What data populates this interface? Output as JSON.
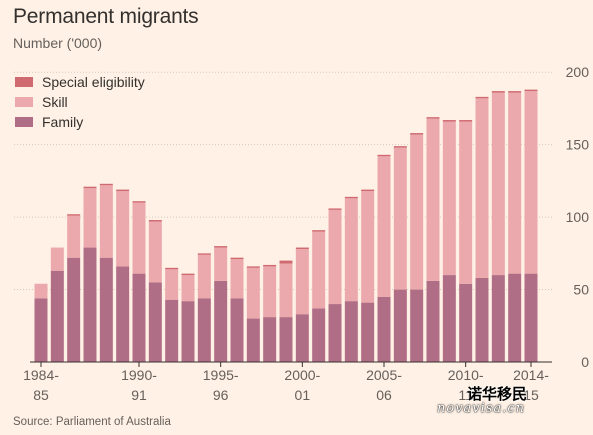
{
  "header": {
    "title": "Permanent migrants",
    "subtitle": "Number ('000)"
  },
  "legend": [
    {
      "label": "Special eligibility",
      "color": "#cf6a71"
    },
    {
      "label": "Skill",
      "color": "#eba9ad"
    },
    {
      "label": "Family",
      "color": "#b06e86"
    }
  ],
  "footer": {
    "source": "Source: Parliament of Australia"
  },
  "watermark": {
    "cn": "诺华移民",
    "en": "novavisa.cn"
  },
  "chart_data": {
    "type": "bar",
    "stacked": true,
    "categories": [
      "1984-85",
      "1985-86",
      "1986-87",
      "1987-88",
      "1988-89",
      "1989-90",
      "1990-91",
      "1991-92",
      "1992-93",
      "1993-94",
      "1994-95",
      "1995-96",
      "1996-97",
      "1997-98",
      "1998-99",
      "1999-00",
      "2000-01",
      "2001-02",
      "2002-03",
      "2003-04",
      "2004-05",
      "2005-06",
      "2006-07",
      "2007-08",
      "2008-09",
      "2009-10",
      "2010-11",
      "2011-12",
      "2012-13",
      "2013-14",
      "2014-15"
    ],
    "x_tick_labels": [
      {
        "index": 0,
        "lines": [
          "1984-",
          "85"
        ]
      },
      {
        "index": 6,
        "lines": [
          "1990-",
          "91"
        ]
      },
      {
        "index": 11,
        "lines": [
          "1995-",
          "96"
        ]
      },
      {
        "index": 16,
        "lines": [
          "2000-",
          "01"
        ]
      },
      {
        "index": 21,
        "lines": [
          "2005-",
          "06"
        ]
      },
      {
        "index": 26,
        "lines": [
          "2010-",
          "11"
        ]
      },
      {
        "index": 30,
        "lines": [
          "2014-",
          "15"
        ]
      }
    ],
    "series": [
      {
        "name": "Family",
        "color": "#b06e86",
        "values": [
          44,
          63,
          72,
          79,
          72,
          66,
          61,
          55,
          43,
          42,
          44,
          56,
          44,
          30,
          31,
          31,
          33,
          37,
          40,
          42,
          41,
          45,
          50,
          50,
          56,
          60,
          54,
          58,
          60,
          61,
          61
        ]
      },
      {
        "name": "Skill",
        "color": "#eba9ad",
        "values": [
          10,
          16,
          29,
          41,
          50,
          52,
          49,
          42,
          21,
          18,
          30,
          23,
          27,
          35,
          35,
          37,
          45,
          53,
          65,
          71,
          77,
          97,
          98,
          107,
          112,
          106,
          112,
          124,
          126,
          125,
          126
        ]
      },
      {
        "name": "Special eligibility",
        "color": "#cf6a71",
        "values": [
          0,
          0,
          1,
          1,
          1,
          1,
          1,
          1,
          1,
          1,
          1,
          1,
          1,
          1,
          1,
          2,
          1,
          1,
          1,
          1,
          1,
          1,
          1,
          1,
          1,
          1,
          1,
          1,
          1,
          1,
          1
        ]
      }
    ],
    "y_ticks": [
      0,
      50,
      100,
      150,
      200
    ],
    "ylim": [
      0,
      205
    ],
    "grid": true,
    "legend_position": "top-left"
  }
}
